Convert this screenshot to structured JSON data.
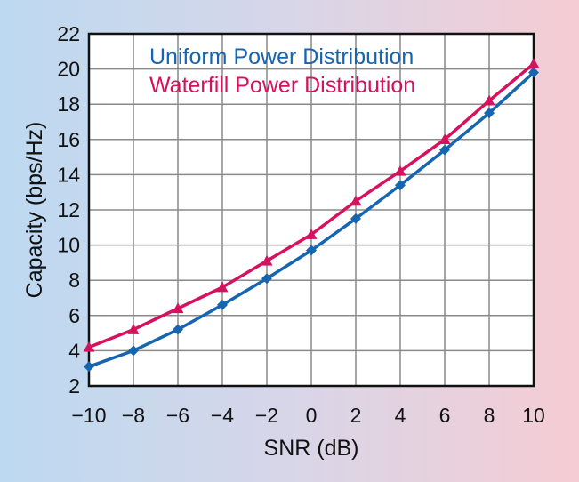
{
  "chart_data": {
    "type": "line",
    "title": "",
    "xlabel": "SNR (dB)",
    "ylabel": "Capacity (bps/Hz)",
    "xlim": [
      -10,
      10
    ],
    "ylim": [
      2,
      22
    ],
    "x_ticks": [
      "−10",
      "−8",
      "−6",
      "−4",
      "−2",
      "0",
      "2",
      "4",
      "6",
      "8",
      "10"
    ],
    "y_ticks": [
      "2",
      "4",
      "6",
      "8",
      "10",
      "12",
      "14",
      "16",
      "18",
      "20",
      "22"
    ],
    "grid": true,
    "legend_position": "top-left",
    "x": [
      -10,
      -8,
      -6,
      -4,
      -2,
      0,
      2,
      4,
      6,
      8,
      10
    ],
    "series": [
      {
        "name": "Uniform Power Distribution",
        "color": "#1565b0",
        "marker": "diamond",
        "values": [
          3.1,
          4.0,
          5.2,
          6.6,
          8.1,
          9.7,
          11.5,
          13.4,
          15.4,
          17.5,
          19.8
        ]
      },
      {
        "name": "Waterfill Power Distribution",
        "color": "#d6125e",
        "marker": "triangle",
        "values": [
          4.2,
          5.2,
          6.4,
          7.6,
          9.1,
          10.6,
          12.5,
          14.2,
          16.0,
          18.2,
          20.3
        ]
      }
    ]
  }
}
